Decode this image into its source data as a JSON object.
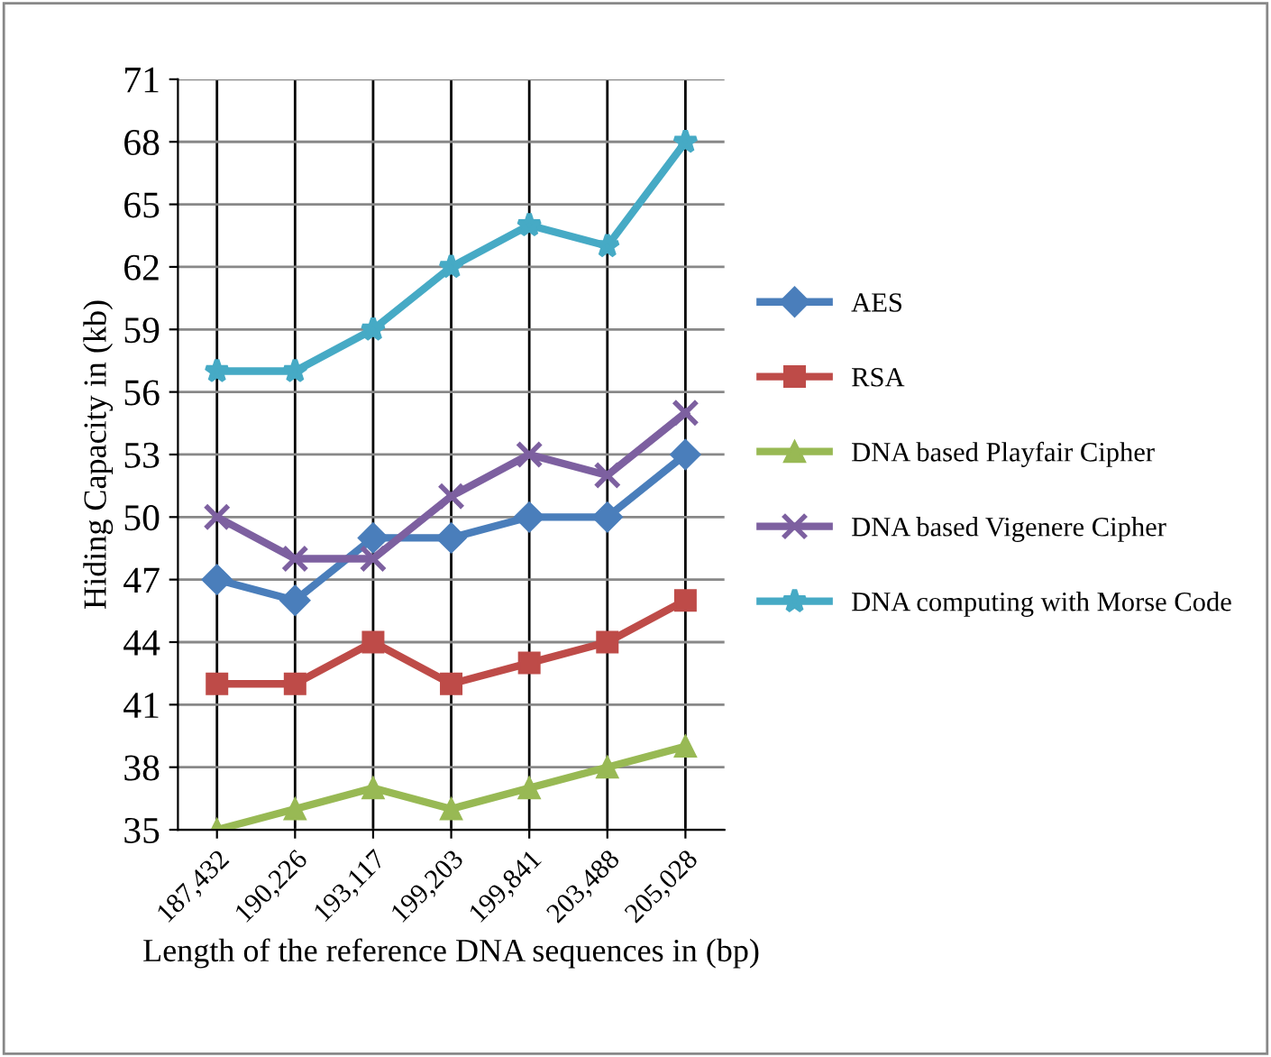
{
  "chart_data": {
    "type": "line",
    "xlabel": "Length of the reference DNA sequences in (bp)",
    "ylabel": "Hiding Capacity in (kb)",
    "categories": [
      "187,432",
      "190,226",
      "193,117",
      "199,203",
      "199,841",
      "203,488",
      "205,028"
    ],
    "ylim": [
      35,
      71
    ],
    "yticks": [
      35,
      38,
      41,
      44,
      47,
      50,
      53,
      56,
      59,
      62,
      65,
      68,
      71
    ],
    "grid": true,
    "legend": "right",
    "series": [
      {
        "name": "AES",
        "color": "#4a7ebb",
        "marker": "diamond",
        "values": [
          47,
          46,
          49,
          49,
          50,
          50,
          53
        ]
      },
      {
        "name": "RSA",
        "color": "#be4b48",
        "marker": "square",
        "values": [
          42,
          42,
          44,
          42,
          43,
          44,
          46
        ]
      },
      {
        "name": "DNA based Playfair Cipher",
        "color": "#98b954",
        "marker": "triangle",
        "values": [
          35,
          36,
          37,
          36,
          37,
          38,
          39
        ]
      },
      {
        "name": "DNA based Vigenere Cipher",
        "color": "#7d60a0",
        "marker": "cross",
        "values": [
          50,
          48,
          48,
          51,
          53,
          52,
          55
        ]
      },
      {
        "name": "DNA computing with Morse Code",
        "color": "#46aac5",
        "marker": "star",
        "values": [
          57,
          57,
          59,
          62,
          64,
          63,
          68
        ]
      }
    ]
  }
}
